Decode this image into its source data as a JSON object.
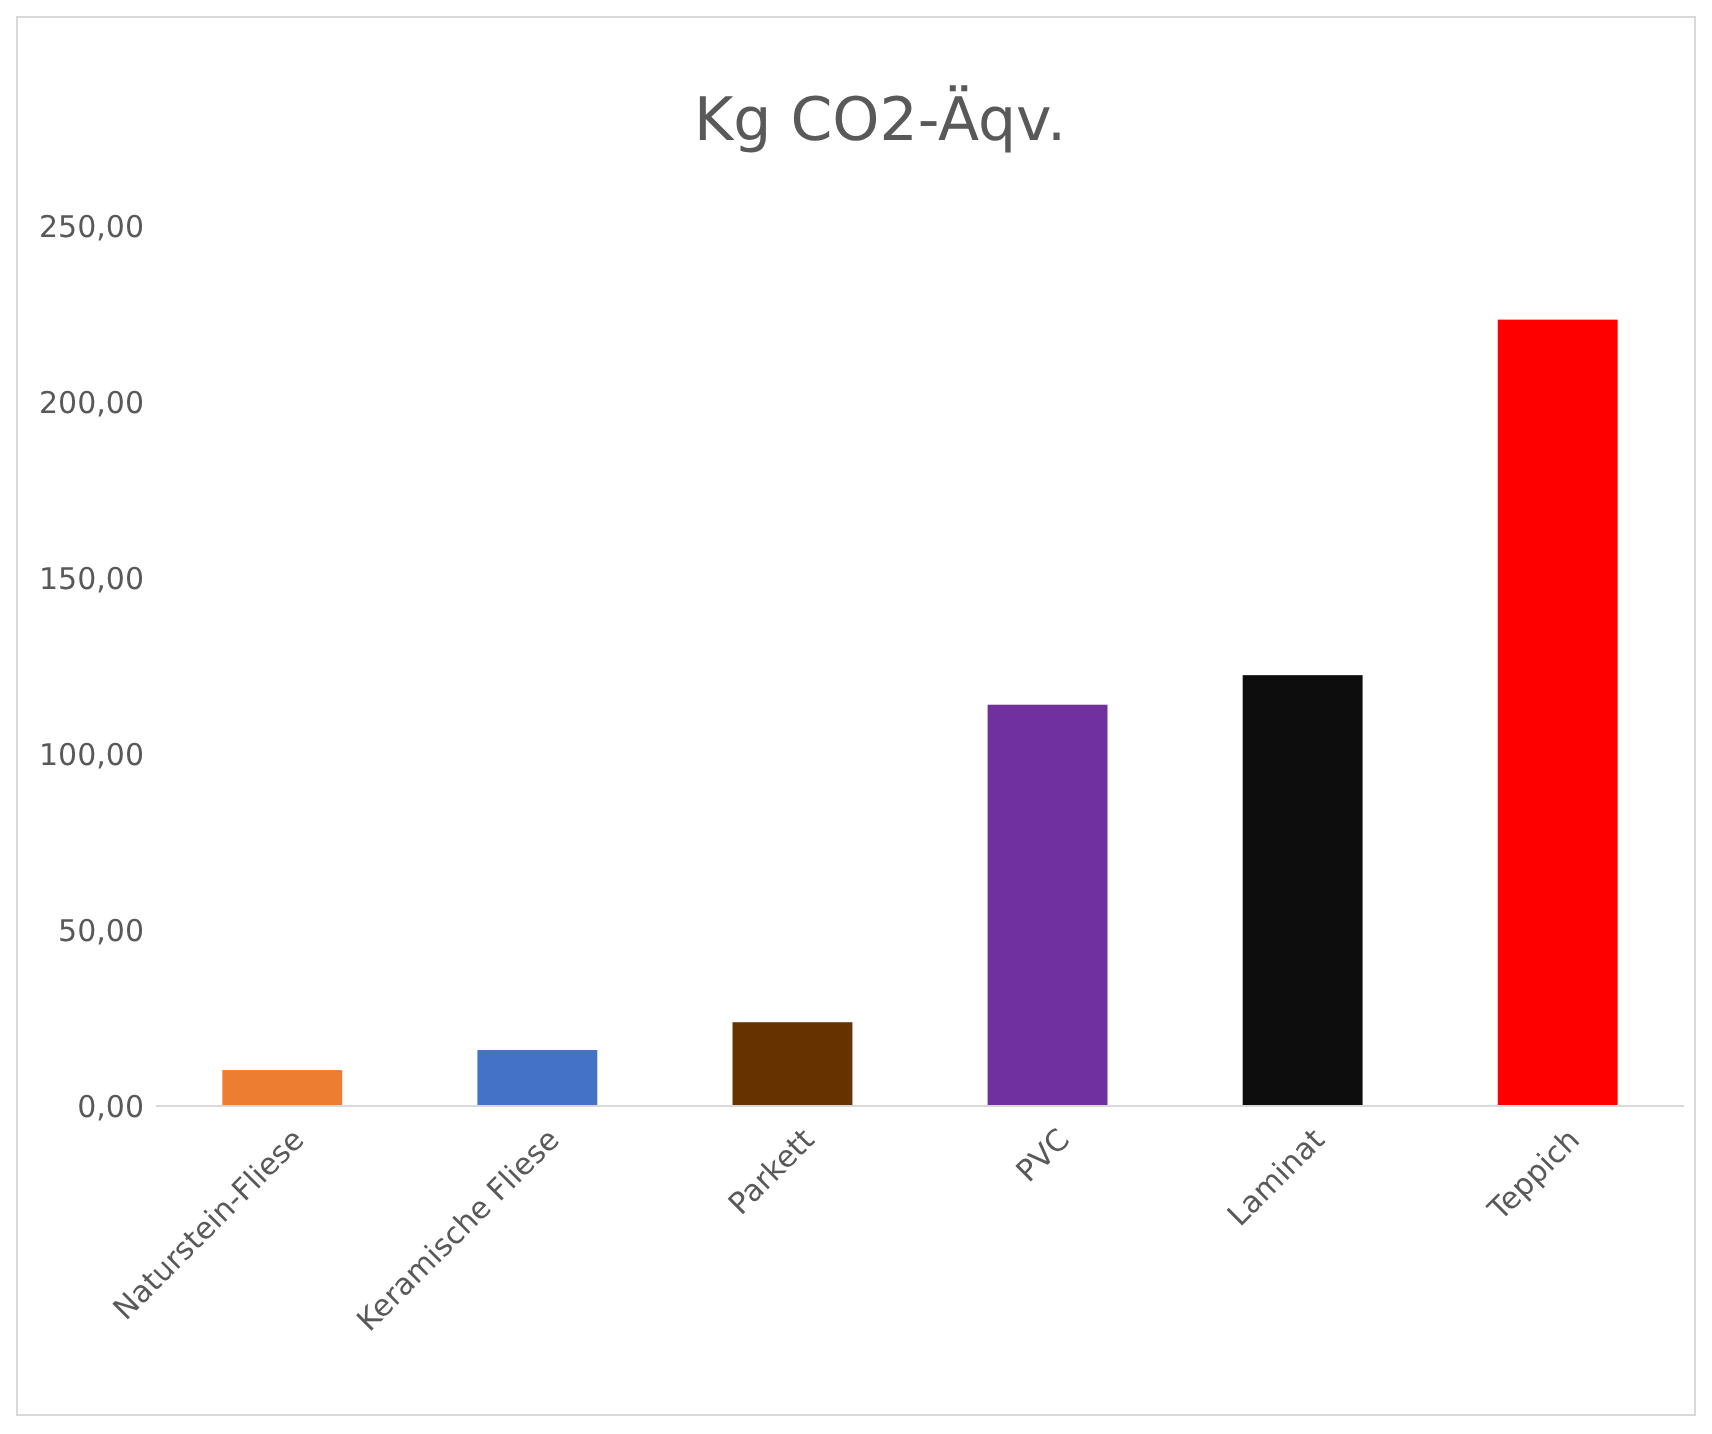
{
  "chart_data": {
    "type": "bar",
    "title": "Kg CO2-Äqv.",
    "categories": [
      "Naturstein-Fliese",
      "Keramische Fliese",
      "Parkett",
      "PVC",
      "Laminat",
      "Teppich"
    ],
    "values": [
      10.2,
      15.9,
      23.8,
      114,
      122.4,
      223.4
    ],
    "colors": [
      "#ed7d31",
      "#4472c4",
      "#663300",
      "#7030a0",
      "#0d0d0d",
      "#ff0000"
    ],
    "ylim": [
      0,
      250
    ],
    "yticks": [
      {
        "value": 0,
        "label": "0,00"
      },
      {
        "value": 50,
        "label": "50,00"
      },
      {
        "value": 100,
        "label": "100,00"
      },
      {
        "value": 150,
        "label": "150,00"
      },
      {
        "value": 200,
        "label": "200,00"
      },
      {
        "value": 250,
        "label": "250,00"
      }
    ]
  }
}
